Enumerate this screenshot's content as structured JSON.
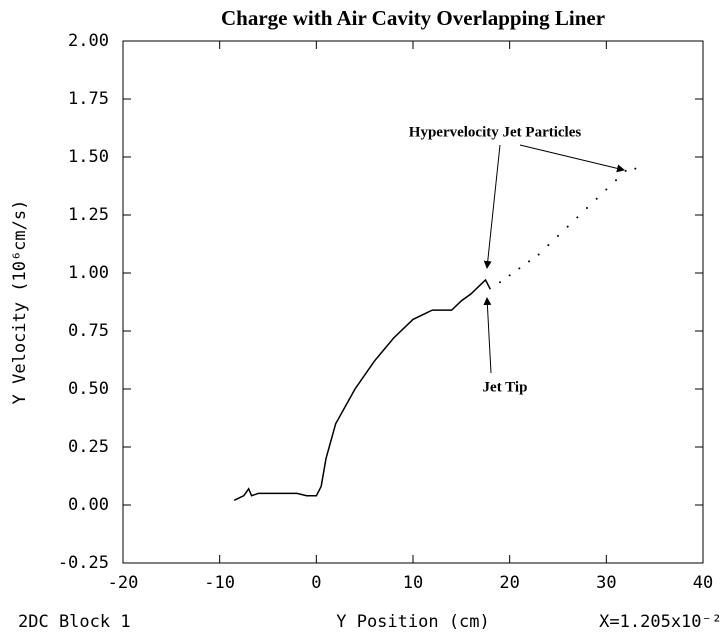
{
  "chart_data": {
    "type": "line",
    "title": "Charge with Air Cavity Overlapping Liner",
    "xlabel": "Y Position (cm)",
    "ylabel": "Y Velocity (10⁶cm/s)",
    "footer_left": "2DC Block 1",
    "footer_right": "X=1.205x10⁻²",
    "annotations": [
      "Hypervelocity Jet Particles",
      "Jet Tip"
    ],
    "xlim": [
      -20,
      40
    ],
    "xticks": [
      -20,
      -10,
      0,
      10,
      20,
      30,
      40
    ],
    "ylim": [
      -0.25,
      2.0
    ],
    "yticks": [
      {
        "value": -0.25,
        "label": "-0.25"
      },
      {
        "value": 0,
        "label": "0.00"
      },
      {
        "value": 0.25,
        "label": "0.25"
      },
      {
        "value": 0.5,
        "label": "0.50"
      },
      {
        "value": 0.75,
        "label": "0.75"
      },
      {
        "value": 1.0,
        "label": "1.00"
      },
      {
        "value": 1.25,
        "label": "1.25"
      },
      {
        "value": 1.5,
        "label": "1.50"
      },
      {
        "value": 1.75,
        "label": "1.75"
      },
      {
        "value": 2.0,
        "label": "2.00"
      }
    ],
    "series": [
      {
        "color": "#000000",
        "style": "line",
        "x": [
          -8.5,
          -7.5,
          -7,
          -6.7,
          -6,
          -2,
          -1,
          0,
          0.5,
          1,
          2,
          4,
          6,
          8,
          10,
          12,
          14,
          15,
          16,
          17,
          17.5,
          18
        ],
        "values": [
          0.02,
          0.04,
          0.07,
          0.04,
          0.05,
          0.05,
          0.04,
          0.04,
          0.08,
          0.2,
          0.35,
          0.5,
          0.62,
          0.72,
          0.8,
          0.84,
          0.84,
          0.88,
          0.91,
          0.95,
          0.97,
          0.93
        ]
      },
      {
        "color": "#000000",
        "style": "dots",
        "x": [
          19,
          20,
          21,
          22,
          23,
          24,
          25,
          26,
          27,
          28,
          29,
          30,
          31,
          32,
          33
        ],
        "values": [
          0.96,
          0.99,
          1.02,
          1.05,
          1.08,
          1.12,
          1.16,
          1.2,
          1.24,
          1.28,
          1.32,
          1.36,
          1.4,
          1.44,
          1.45
        ]
      }
    ]
  }
}
